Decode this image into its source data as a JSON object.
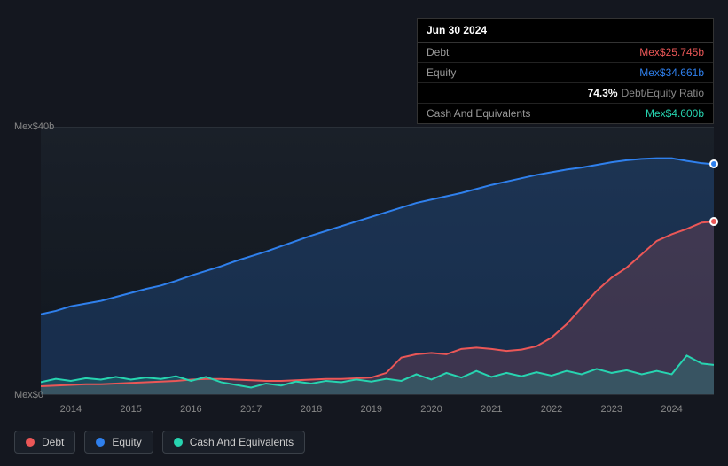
{
  "tooltip": {
    "date": "Jun 30 2024",
    "rows": [
      {
        "label": "Debt",
        "value": "Mex$25.745b",
        "color": "#eb5757"
      },
      {
        "label": "Equity",
        "value": "Mex$34.661b",
        "color": "#2f80ed"
      },
      {
        "label": "",
        "pct": "74.3%",
        "suffix": "Debt/Equity Ratio"
      },
      {
        "label": "Cash And Equivalents",
        "value": "Mex$4.600b",
        "color": "#27d4b0"
      }
    ]
  },
  "chart": {
    "type": "area",
    "background_color": "#14171f",
    "grid_color": "#2a3038",
    "ylim": [
      0,
      40
    ],
    "y_ticks": [
      0,
      40
    ],
    "y_label_prefix": "Mex$",
    "y_label_suffix": "b",
    "x_years": [
      2014,
      2015,
      2016,
      2017,
      2018,
      2019,
      2020,
      2021,
      2022,
      2023,
      2024
    ],
    "x_range": [
      2013.5,
      2024.7
    ],
    "tick_fontsize": 11,
    "tick_color": "#888888",
    "series": [
      {
        "name": "Equity",
        "color": "#2f80ed",
        "fill_opacity": 0.22,
        "line_width": 2,
        "data": [
          [
            2013.5,
            12.0
          ],
          [
            2013.75,
            12.5
          ],
          [
            2014.0,
            13.2
          ],
          [
            2014.25,
            13.6
          ],
          [
            2014.5,
            14.0
          ],
          [
            2014.75,
            14.6
          ],
          [
            2015.0,
            15.2
          ],
          [
            2015.25,
            15.8
          ],
          [
            2015.5,
            16.3
          ],
          [
            2015.75,
            17.0
          ],
          [
            2016.0,
            17.8
          ],
          [
            2016.25,
            18.5
          ],
          [
            2016.5,
            19.2
          ],
          [
            2016.75,
            20.0
          ],
          [
            2017.0,
            20.7
          ],
          [
            2017.25,
            21.4
          ],
          [
            2017.5,
            22.2
          ],
          [
            2017.75,
            23.0
          ],
          [
            2018.0,
            23.8
          ],
          [
            2018.25,
            24.5
          ],
          [
            2018.5,
            25.2
          ],
          [
            2018.75,
            25.9
          ],
          [
            2019.0,
            26.6
          ],
          [
            2019.25,
            27.3
          ],
          [
            2019.5,
            28.0
          ],
          [
            2019.75,
            28.7
          ],
          [
            2020.0,
            29.2
          ],
          [
            2020.25,
            29.7
          ],
          [
            2020.5,
            30.2
          ],
          [
            2020.75,
            30.8
          ],
          [
            2021.0,
            31.4
          ],
          [
            2021.25,
            31.9
          ],
          [
            2021.5,
            32.4
          ],
          [
            2021.75,
            32.9
          ],
          [
            2022.0,
            33.3
          ],
          [
            2022.25,
            33.7
          ],
          [
            2022.5,
            34.0
          ],
          [
            2022.75,
            34.4
          ],
          [
            2023.0,
            34.8
          ],
          [
            2023.25,
            35.1
          ],
          [
            2023.5,
            35.3
          ],
          [
            2023.75,
            35.4
          ],
          [
            2024.0,
            35.4
          ],
          [
            2024.25,
            35.0
          ],
          [
            2024.5,
            34.66
          ],
          [
            2024.7,
            34.5
          ]
        ]
      },
      {
        "name": "Debt",
        "color": "#eb5757",
        "fill_opacity": 0.18,
        "line_width": 2,
        "data": [
          [
            2013.5,
            1.2
          ],
          [
            2013.75,
            1.3
          ],
          [
            2014.0,
            1.4
          ],
          [
            2014.25,
            1.5
          ],
          [
            2014.5,
            1.5
          ],
          [
            2014.75,
            1.6
          ],
          [
            2015.0,
            1.7
          ],
          [
            2015.25,
            1.8
          ],
          [
            2015.5,
            1.9
          ],
          [
            2015.75,
            2.0
          ],
          [
            2016.0,
            2.2
          ],
          [
            2016.25,
            2.3
          ],
          [
            2016.5,
            2.3
          ],
          [
            2016.75,
            2.2
          ],
          [
            2017.0,
            2.1
          ],
          [
            2017.25,
            2.0
          ],
          [
            2017.5,
            2.0
          ],
          [
            2017.75,
            2.1
          ],
          [
            2018.0,
            2.2
          ],
          [
            2018.25,
            2.3
          ],
          [
            2018.5,
            2.3
          ],
          [
            2018.75,
            2.4
          ],
          [
            2019.0,
            2.5
          ],
          [
            2019.25,
            3.2
          ],
          [
            2019.5,
            5.5
          ],
          [
            2019.75,
            6.0
          ],
          [
            2020.0,
            6.2
          ],
          [
            2020.25,
            6.0
          ],
          [
            2020.5,
            6.8
          ],
          [
            2020.75,
            7.0
          ],
          [
            2021.0,
            6.8
          ],
          [
            2021.25,
            6.5
          ],
          [
            2021.5,
            6.7
          ],
          [
            2021.75,
            7.2
          ],
          [
            2022.0,
            8.5
          ],
          [
            2022.25,
            10.5
          ],
          [
            2022.5,
            13.0
          ],
          [
            2022.75,
            15.5
          ],
          [
            2023.0,
            17.5
          ],
          [
            2023.25,
            19.0
          ],
          [
            2023.5,
            21.0
          ],
          [
            2023.75,
            23.0
          ],
          [
            2024.0,
            24.0
          ],
          [
            2024.25,
            24.8
          ],
          [
            2024.5,
            25.75
          ],
          [
            2024.7,
            25.9
          ]
        ]
      },
      {
        "name": "Cash And Equivalents",
        "color": "#27d4b0",
        "fill_opacity": 0.2,
        "line_width": 2,
        "data": [
          [
            2013.5,
            1.8
          ],
          [
            2013.75,
            2.3
          ],
          [
            2014.0,
            2.0
          ],
          [
            2014.25,
            2.4
          ],
          [
            2014.5,
            2.2
          ],
          [
            2014.75,
            2.6
          ],
          [
            2015.0,
            2.2
          ],
          [
            2015.25,
            2.5
          ],
          [
            2015.5,
            2.3
          ],
          [
            2015.75,
            2.7
          ],
          [
            2016.0,
            2.0
          ],
          [
            2016.25,
            2.6
          ],
          [
            2016.5,
            1.8
          ],
          [
            2016.75,
            1.4
          ],
          [
            2017.0,
            1.0
          ],
          [
            2017.25,
            1.6
          ],
          [
            2017.5,
            1.3
          ],
          [
            2017.75,
            1.9
          ],
          [
            2018.0,
            1.6
          ],
          [
            2018.25,
            2.0
          ],
          [
            2018.5,
            1.8
          ],
          [
            2018.75,
            2.2
          ],
          [
            2019.0,
            1.9
          ],
          [
            2019.25,
            2.3
          ],
          [
            2019.5,
            2.0
          ],
          [
            2019.75,
            3.0
          ],
          [
            2020.0,
            2.2
          ],
          [
            2020.25,
            3.2
          ],
          [
            2020.5,
            2.5
          ],
          [
            2020.75,
            3.5
          ],
          [
            2021.0,
            2.6
          ],
          [
            2021.25,
            3.2
          ],
          [
            2021.5,
            2.7
          ],
          [
            2021.75,
            3.3
          ],
          [
            2022.0,
            2.8
          ],
          [
            2022.25,
            3.5
          ],
          [
            2022.5,
            3.0
          ],
          [
            2022.75,
            3.8
          ],
          [
            2023.0,
            3.2
          ],
          [
            2023.25,
            3.6
          ],
          [
            2023.5,
            3.0
          ],
          [
            2023.75,
            3.5
          ],
          [
            2024.0,
            3.0
          ],
          [
            2024.25,
            5.8
          ],
          [
            2024.5,
            4.6
          ],
          [
            2024.7,
            4.4
          ]
        ]
      }
    ],
    "end_markers": [
      {
        "series": "Equity",
        "x": 2024.7,
        "y": 34.5,
        "fill": "#2f80ed"
      },
      {
        "series": "Debt",
        "x": 2024.7,
        "y": 25.9,
        "fill": "#eb5757"
      }
    ]
  },
  "legend": {
    "items": [
      {
        "label": "Debt",
        "color": "#eb5757"
      },
      {
        "label": "Equity",
        "color": "#2f80ed"
      },
      {
        "label": "Cash And Equivalents",
        "color": "#27d4b0"
      }
    ]
  }
}
